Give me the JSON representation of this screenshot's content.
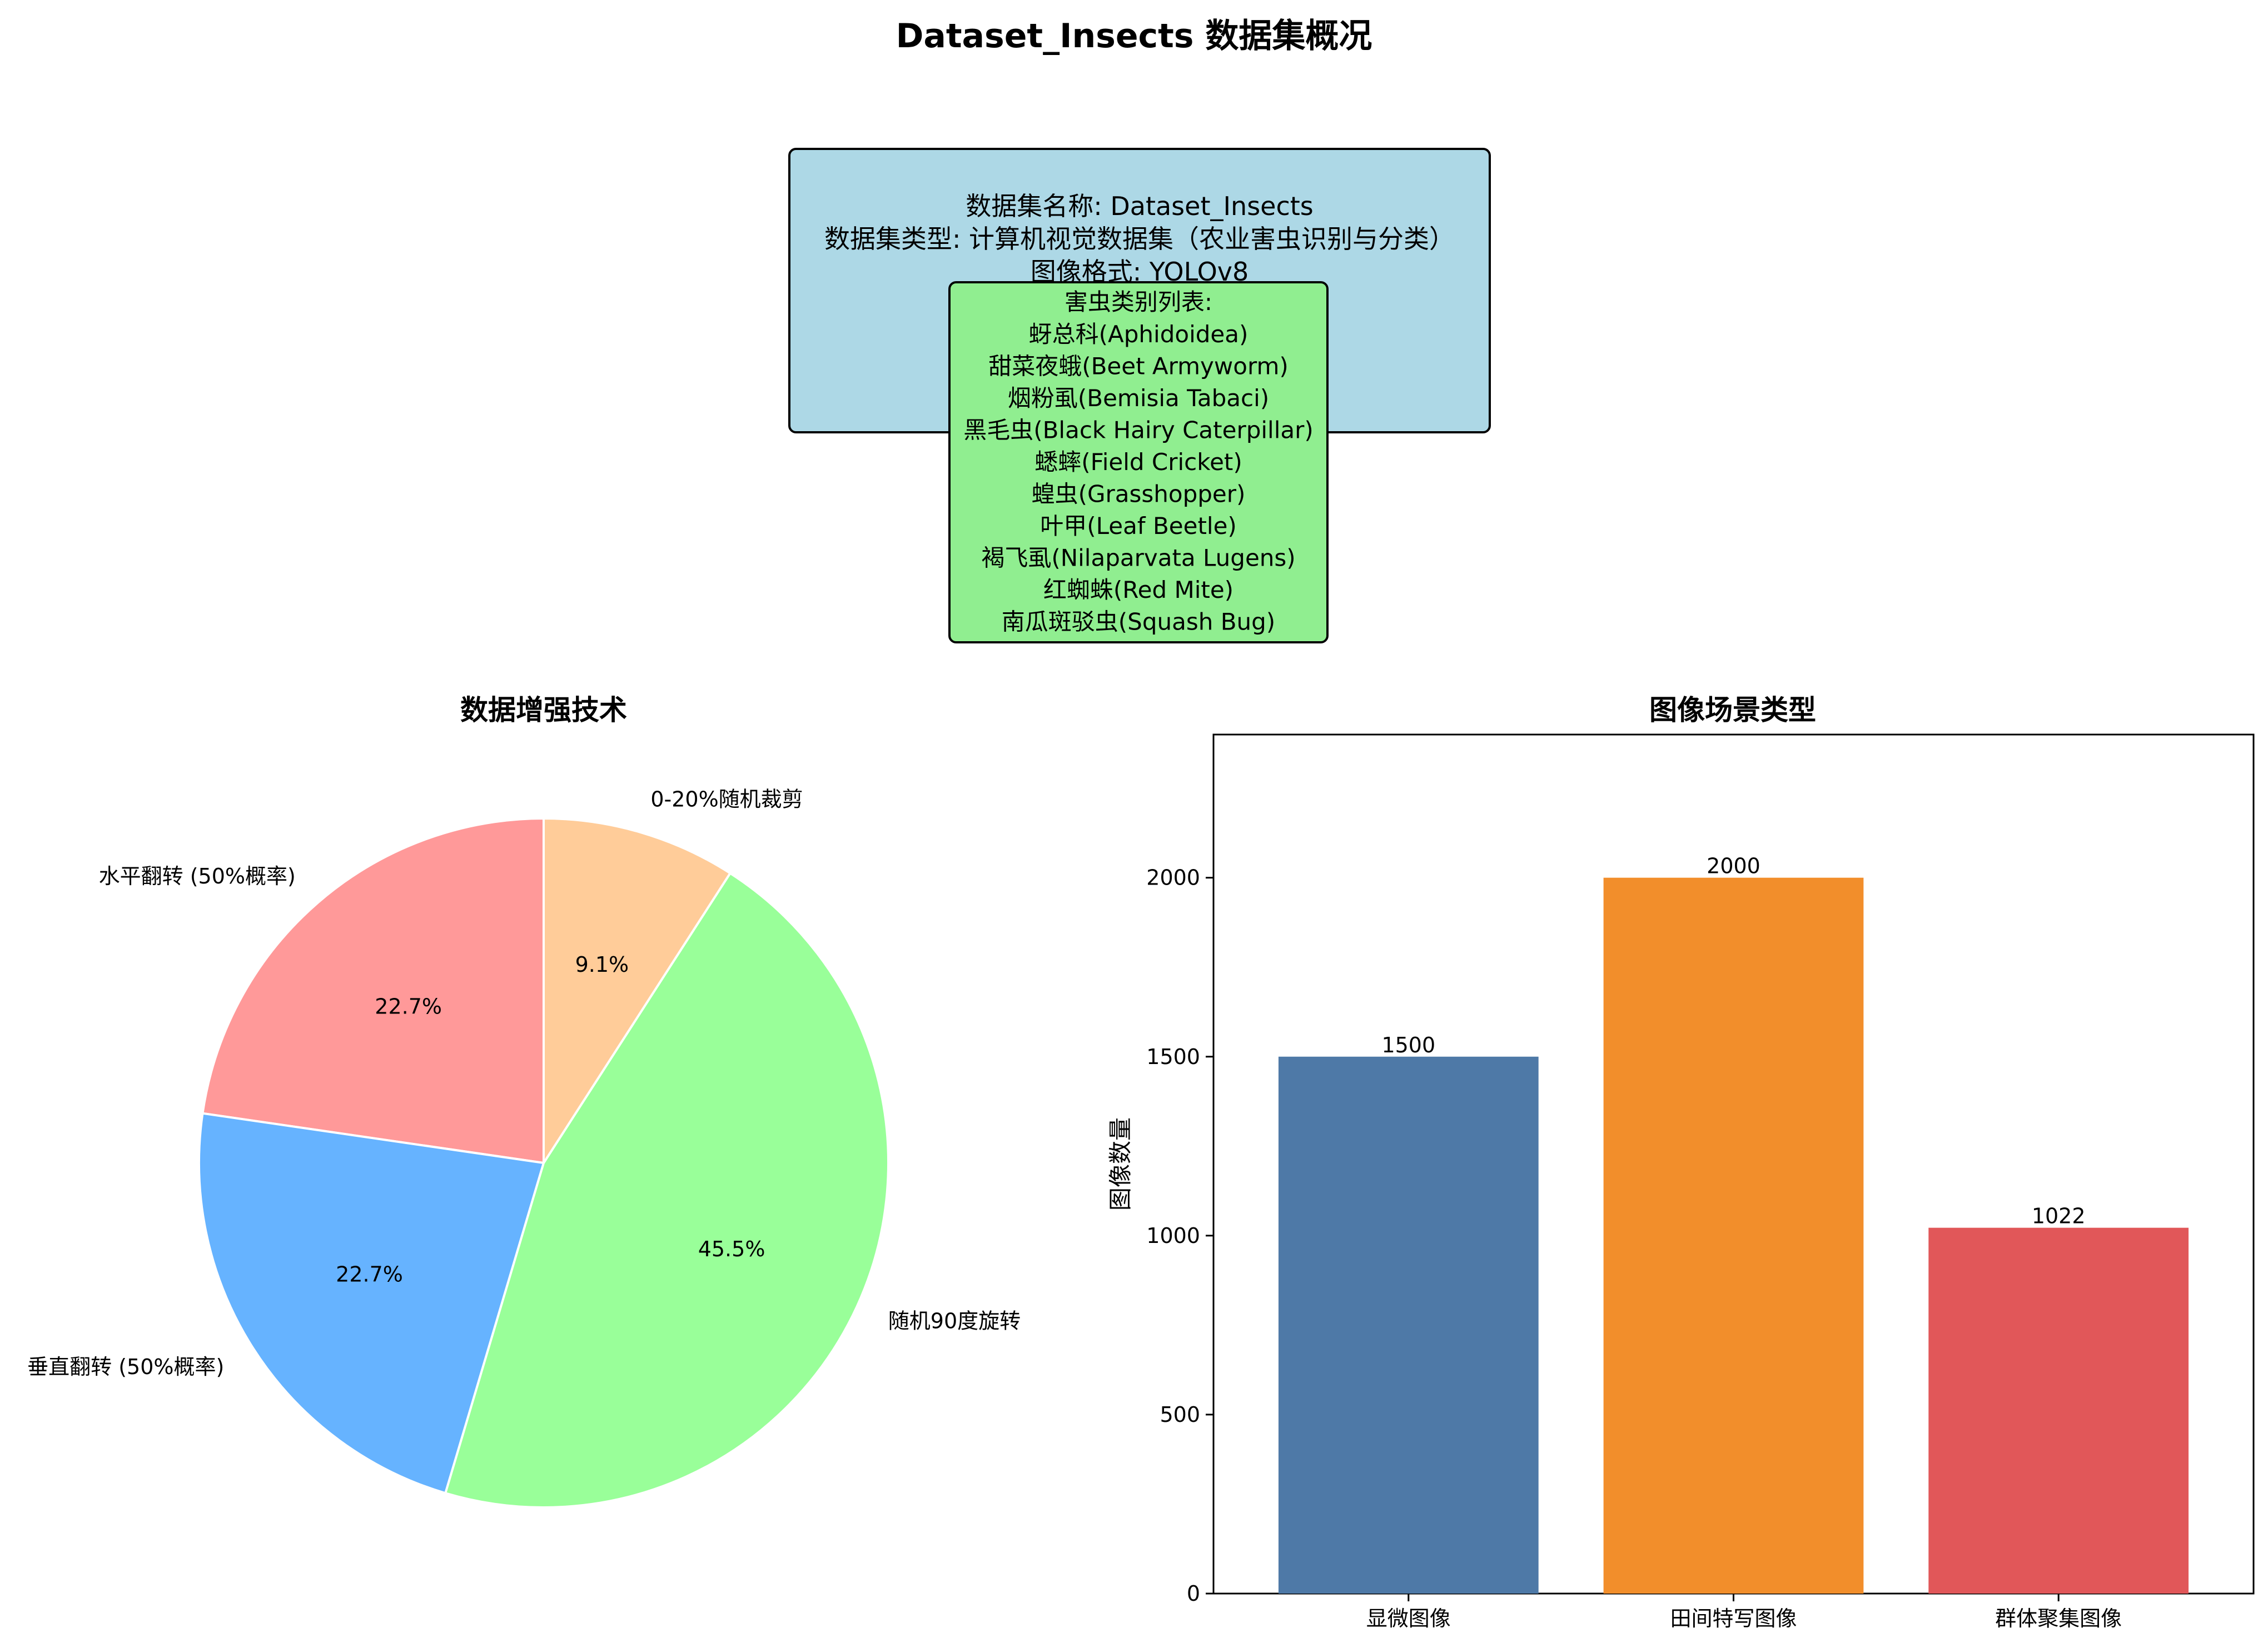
{
  "title": "Dataset_Insects 数据集概况",
  "info_box": {
    "lines": [
      "数据集名称: Dataset_Insects",
      "数据集类型: 计算机视觉数据集（农业害虫识别与分类）",
      "图像格式: YOLOv8"
    ],
    "color": "#add8e6"
  },
  "class_box": {
    "heading": "害虫类别列表:",
    "items": [
      "蚜总科(Aphidoidea)",
      "甜菜夜蛾(Beet Armyworm)",
      "烟粉虱(Bemisia Tabaci)",
      "黑毛虫(Black Hairy Caterpillar)",
      "蟋蟀(Field Cricket)",
      "蝗虫(Grasshopper)",
      "叶甲(Leaf Beetle)",
      "褐飞虱(Nilaparvata Lugens)",
      "红蜘蛛(Red Mite)",
      "南瓜斑驳虫(Squash Bug)"
    ],
    "color": "#90ee90"
  },
  "chart_data": [
    {
      "type": "pie",
      "title": "数据增强技术",
      "labels": [
        "水平翻转 (50%概率)",
        "垂直翻转 (50%概率)",
        "随机90度旋转",
        "0-20%随机裁剪"
      ],
      "values": [
        22.7,
        22.7,
        45.5,
        9.1
      ],
      "pct_labels": [
        "22.7%",
        "22.7%",
        "45.5%",
        "9.1%"
      ],
      "colors": [
        "#ff9999",
        "#66b3ff",
        "#99ff99",
        "#ffcc99"
      ],
      "start_angle_deg": 90,
      "direction": "counterclockwise"
    },
    {
      "type": "bar",
      "title": "图像场景类型",
      "categories": [
        "显微图像",
        "田间特写图像",
        "群体聚集图像"
      ],
      "values": [
        1500,
        2000,
        1022
      ],
      "value_labels": [
        "1500",
        "2000",
        "1022"
      ],
      "colors": [
        "#4e79a7",
        "#f28e2b",
        "#e15759"
      ],
      "ylabel": "图像数量",
      "ylim": [
        0,
        2400
      ],
      "yticks": [
        0,
        500,
        1000,
        1500,
        2000
      ],
      "ytick_labels": [
        "0",
        "500",
        "1000",
        "1500",
        "2000"
      ],
      "grid": false
    }
  ]
}
